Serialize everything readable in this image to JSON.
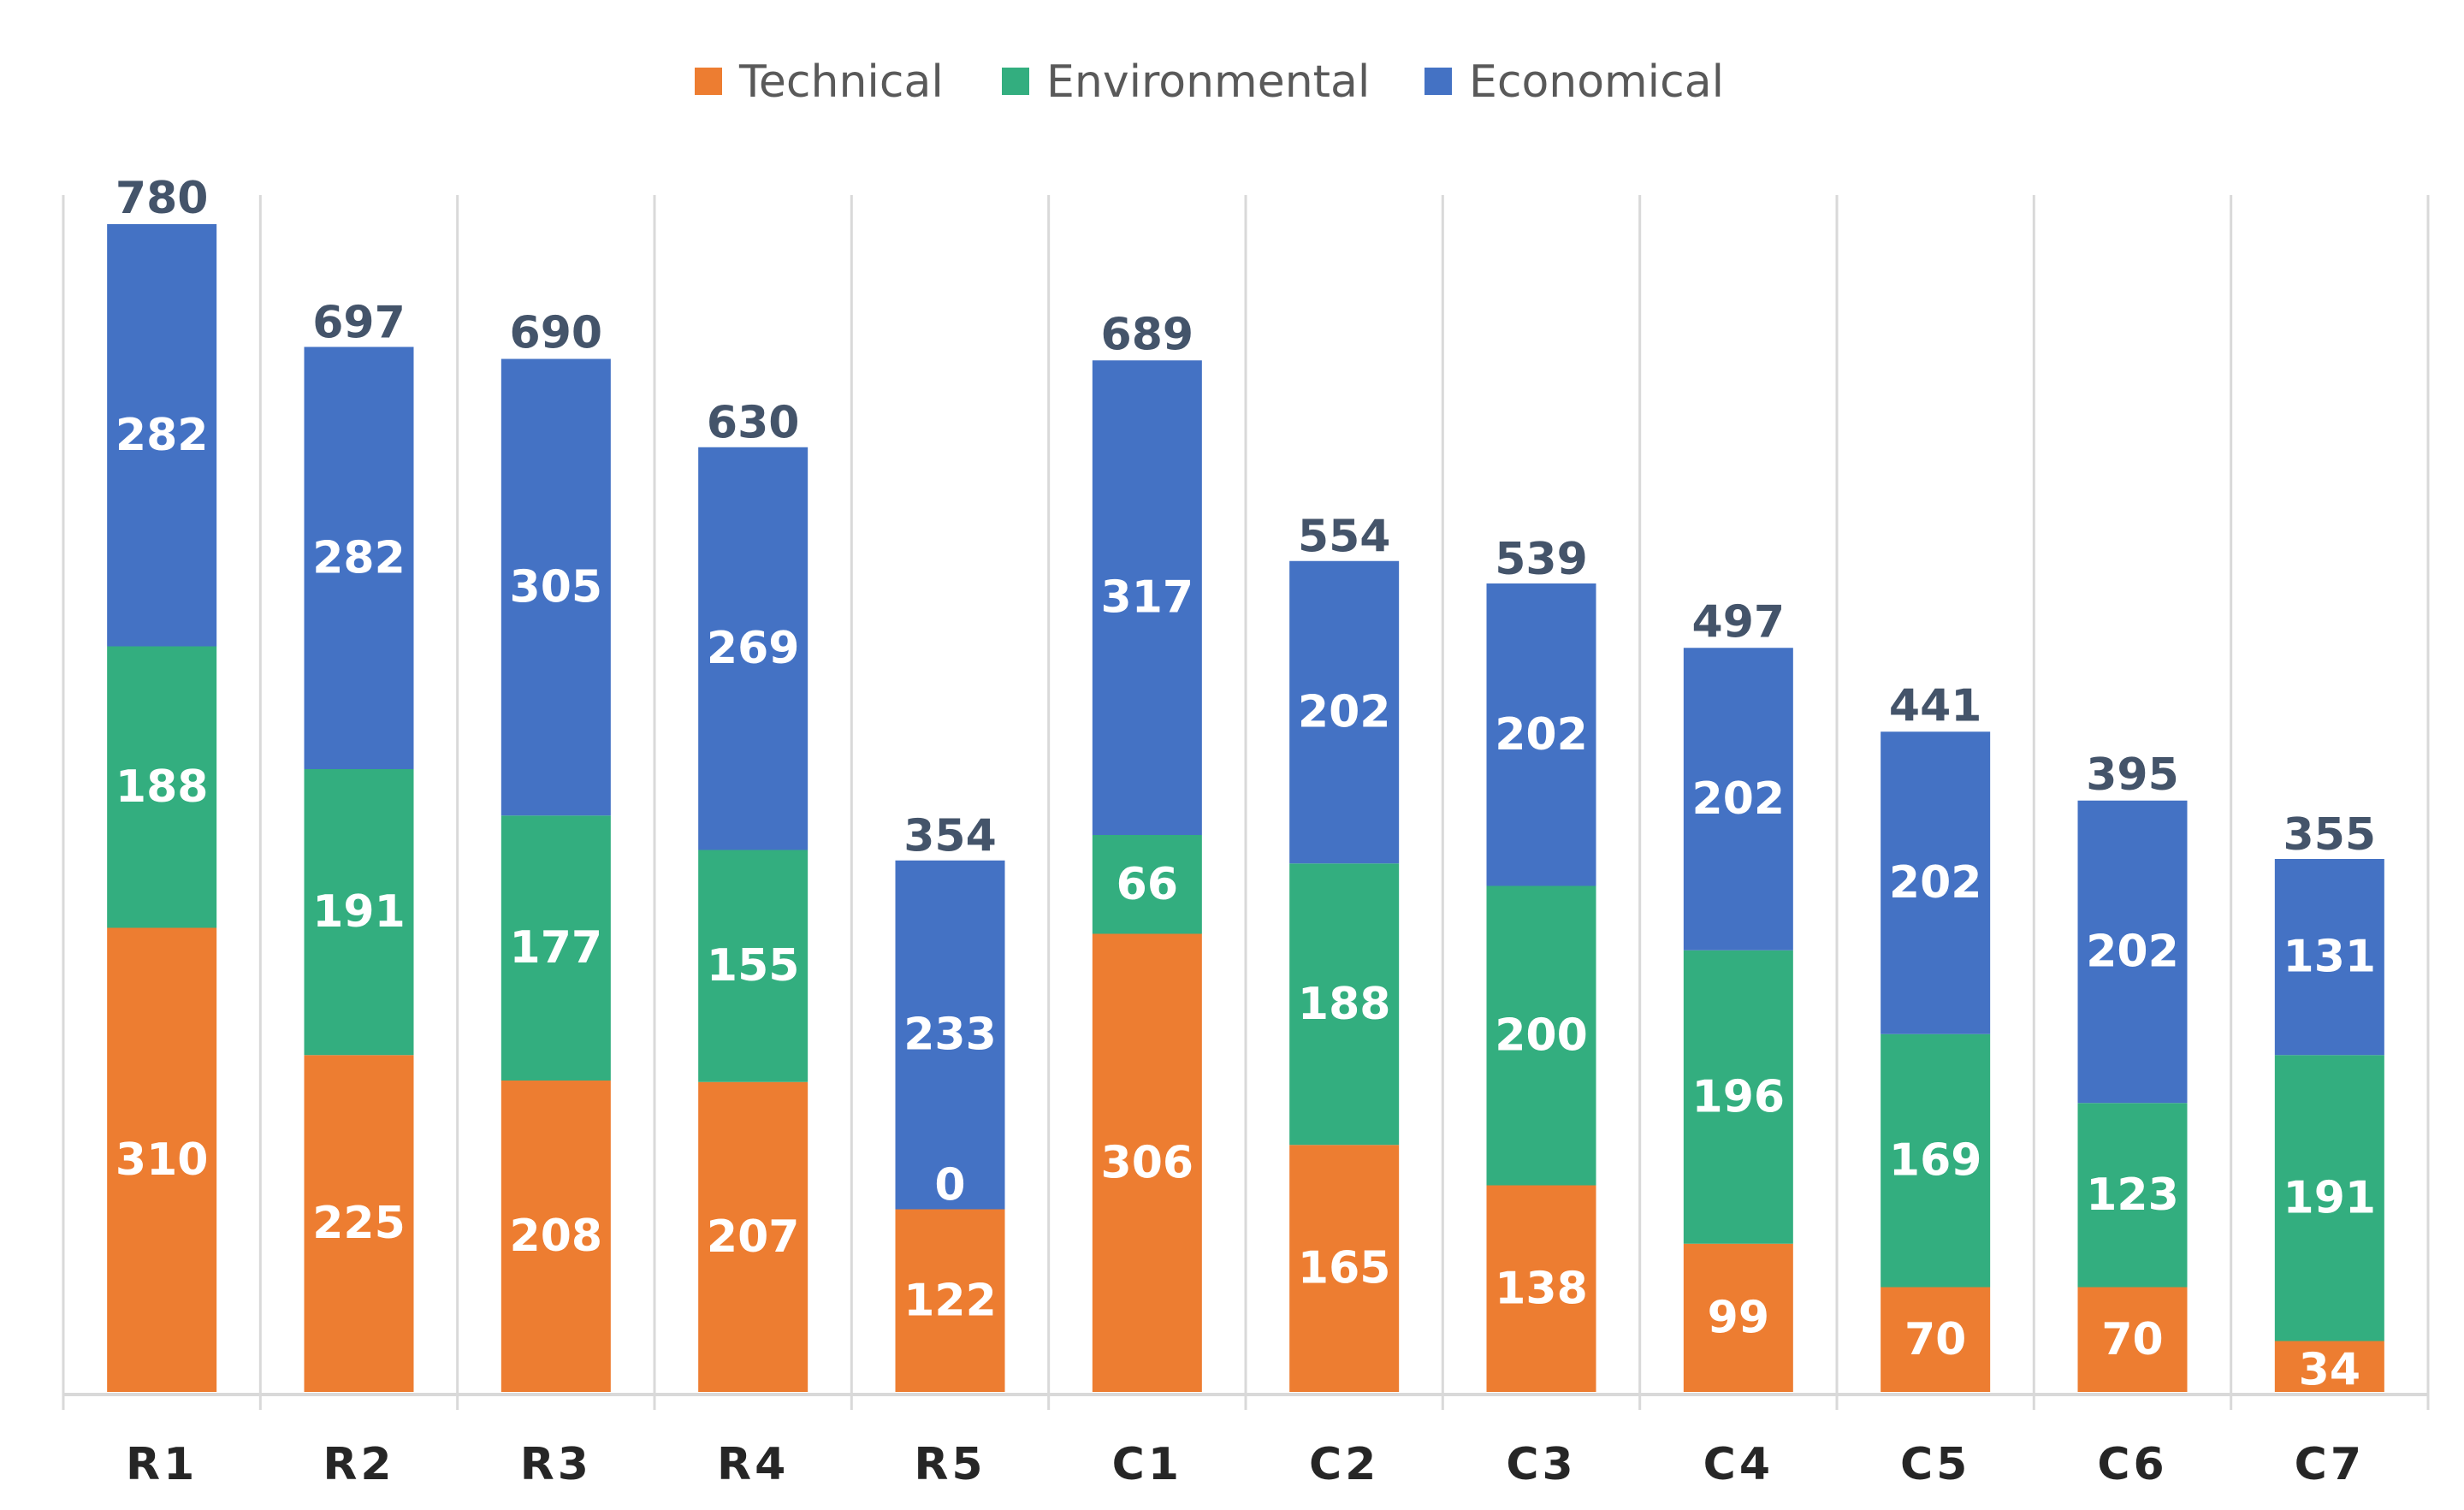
{
  "chart_data": {
    "type": "bar",
    "stacked": true,
    "title": "",
    "xlabel": "",
    "ylabel": "",
    "categories": [
      "R1",
      "R2",
      "R3",
      "R4",
      "R5",
      "C1",
      "C2",
      "C3",
      "C4",
      "C5",
      "C6",
      "C7"
    ],
    "series": [
      {
        "name": "Technical",
        "color": "#ed7d31",
        "values": [
          310,
          225,
          208,
          207,
          122,
          306,
          165,
          138,
          99,
          70,
          70,
          34
        ]
      },
      {
        "name": "Environmental",
        "color": "#33ae7f",
        "values": [
          188,
          191,
          177,
          155,
          0,
          66,
          188,
          200,
          196,
          169,
          123,
          191
        ]
      },
      {
        "name": "Economical",
        "color": "#4472c4",
        "values": [
          282,
          282,
          305,
          269,
          233,
          317,
          202,
          202,
          202,
          202,
          202,
          131
        ]
      }
    ],
    "totals": [
      780,
      697,
      690,
      630,
      354,
      689,
      554,
      539,
      497,
      441,
      395,
      355
    ],
    "ylim": [
      0,
      800
    ],
    "grid": "vertical separators",
    "legend": "top-center"
  }
}
